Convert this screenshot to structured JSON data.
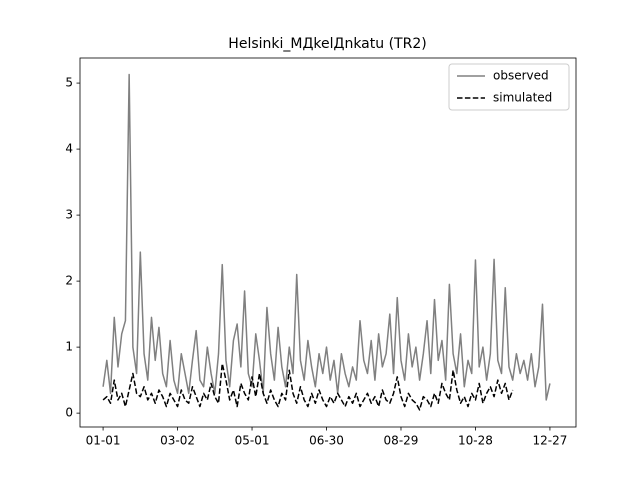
{
  "chart_data": {
    "type": "line",
    "title": "Helsinki_МДkelДnkatu (TR2)",
    "x": [
      0,
      3,
      6,
      9,
      12,
      15,
      18,
      21,
      24,
      27,
      30,
      33,
      36,
      39,
      42,
      45,
      48,
      51,
      54,
      57,
      60,
      63,
      66,
      69,
      72,
      75,
      78,
      81,
      84,
      87,
      90,
      93,
      96,
      99,
      102,
      105,
      108,
      111,
      114,
      117,
      120,
      123,
      126,
      129,
      132,
      135,
      138,
      141,
      144,
      147,
      150,
      153,
      156,
      159,
      162,
      165,
      168,
      171,
      174,
      177,
      180,
      183,
      186,
      189,
      192,
      195,
      198,
      201,
      204,
      207,
      210,
      213,
      216,
      219,
      222,
      225,
      228,
      231,
      234,
      237,
      240,
      243,
      246,
      249,
      252,
      255,
      258,
      261,
      264,
      267,
      270,
      273,
      276,
      279,
      282,
      285,
      288,
      291,
      294,
      297,
      300,
      303,
      306,
      309,
      312,
      315,
      318,
      321,
      324,
      327,
      330,
      333,
      336,
      339,
      342,
      345,
      348,
      351,
      354,
      357,
      360
    ],
    "series": [
      {
        "name": "observed",
        "color": "#808080",
        "dashed": false,
        "values": [
          0.4,
          0.8,
          0.3,
          1.45,
          0.7,
          1.2,
          1.4,
          5.13,
          1.0,
          0.6,
          2.44,
          0.9,
          0.5,
          1.45,
          0.8,
          1.3,
          0.6,
          0.4,
          1.1,
          0.5,
          0.3,
          0.9,
          0.6,
          0.3,
          0.8,
          1.25,
          0.5,
          0.4,
          1.0,
          0.6,
          0.3,
          0.9,
          2.25,
          0.8,
          0.4,
          1.1,
          1.35,
          0.7,
          1.85,
          0.6,
          0.4,
          1.2,
          0.8,
          0.3,
          1.6,
          0.9,
          0.5,
          1.3,
          0.7,
          0.4,
          1.0,
          0.6,
          2.1,
          0.8,
          0.5,
          1.1,
          0.7,
          0.4,
          0.9,
          0.6,
          1.0,
          0.5,
          0.8,
          0.3,
          0.9,
          0.6,
          0.4,
          0.7,
          0.5,
          1.4,
          0.8,
          0.6,
          1.1,
          0.5,
          1.2,
          0.7,
          0.9,
          1.5,
          0.6,
          1.75,
          0.8,
          0.5,
          1.2,
          0.7,
          1.0,
          0.5,
          0.9,
          1.4,
          0.6,
          1.72,
          0.8,
          1.1,
          0.5,
          1.95,
          0.9,
          0.6,
          1.2,
          0.4,
          0.8,
          0.6,
          2.32,
          0.7,
          1.0,
          0.5,
          0.9,
          2.33,
          0.8,
          0.6,
          1.9,
          0.7,
          0.5,
          0.9,
          0.6,
          0.8,
          0.5,
          0.9,
          0.4,
          0.7,
          1.65,
          0.2,
          0.45
        ]
      },
      {
        "name": "simulated",
        "color": "#000000",
        "dashed": true,
        "values": [
          0.2,
          0.25,
          0.15,
          0.5,
          0.2,
          0.3,
          0.1,
          0.35,
          0.6,
          0.3,
          0.25,
          0.4,
          0.2,
          0.3,
          0.15,
          0.35,
          0.25,
          0.1,
          0.3,
          0.2,
          0.1,
          0.35,
          0.2,
          0.15,
          0.4,
          0.25,
          0.1,
          0.3,
          0.2,
          0.45,
          0.25,
          0.15,
          0.75,
          0.5,
          0.2,
          0.35,
          0.1,
          0.45,
          0.3,
          0.2,
          0.55,
          0.25,
          0.6,
          0.3,
          0.15,
          0.35,
          0.2,
          0.1,
          0.3,
          0.2,
          0.65,
          0.3,
          0.15,
          0.4,
          0.2,
          0.1,
          0.3,
          0.15,
          0.35,
          0.2,
          0.1,
          0.25,
          0.15,
          0.3,
          0.2,
          0.1,
          0.25,
          0.15,
          0.3,
          0.1,
          0.2,
          0.3,
          0.15,
          0.25,
          0.1,
          0.35,
          0.2,
          0.15,
          0.3,
          0.55,
          0.25,
          0.1,
          0.3,
          0.2,
          0.15,
          0.05,
          0.25,
          0.2,
          0.1,
          0.3,
          0.15,
          0.45,
          0.3,
          0.2,
          0.65,
          0.35,
          0.15,
          0.25,
          0.1,
          0.3,
          0.2,
          0.45,
          0.15,
          0.3,
          0.4,
          0.25,
          0.5,
          0.3,
          0.45,
          0.2,
          0.35,
          null,
          null,
          null,
          null,
          null,
          null,
          null,
          null,
          null,
          null
        ]
      }
    ],
    "xlim": [
      -18.6,
      381
    ],
    "xticks": [
      {
        "value": 0,
        "label": "01-01"
      },
      {
        "value": 60,
        "label": "03-02"
      },
      {
        "value": 120,
        "label": "05-01"
      },
      {
        "value": 180,
        "label": "06-30"
      },
      {
        "value": 240,
        "label": "08-29"
      },
      {
        "value": 300,
        "label": "10-28"
      },
      {
        "value": 360,
        "label": "12-27"
      }
    ],
    "ylim": [
      -0.21,
      5.38
    ],
    "yticks": [
      0,
      1,
      2,
      3,
      4,
      5
    ],
    "legend": "upper right"
  }
}
